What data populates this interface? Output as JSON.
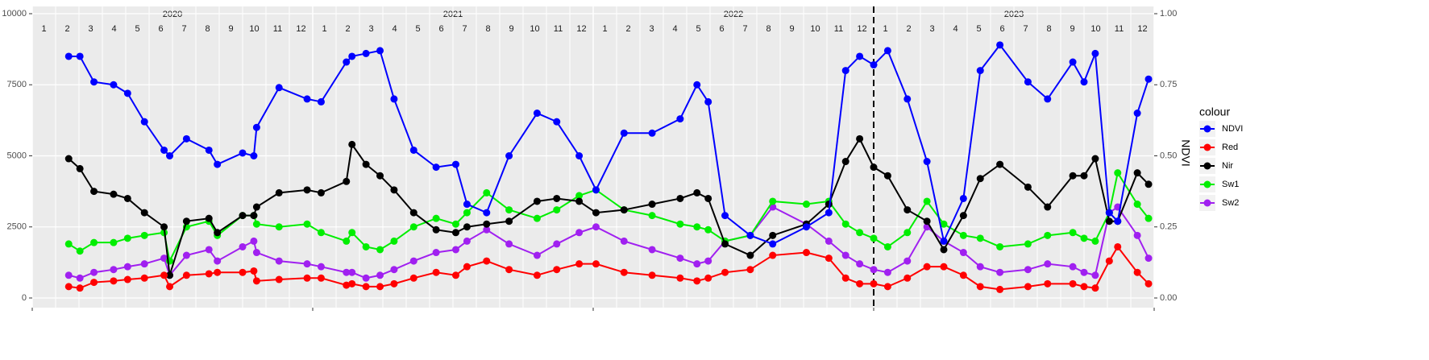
{
  "chart_data": {
    "type": "line",
    "y2_label": "NDVI",
    "legend_title": "colour",
    "legend": "right",
    "grid": true,
    "years": [
      "2020",
      "2021",
      "2022",
      "2023"
    ],
    "months": [
      "1",
      "2",
      "3",
      "4",
      "5",
      "6",
      "7",
      "8",
      "9",
      "10",
      "11",
      "12"
    ],
    "vline": 2023.0,
    "xlim": [
      2020.0,
      2024.0
    ],
    "xticks": [
      2020,
      2021,
      2022,
      2023,
      2024
    ],
    "ylim": [
      -340,
      10255
    ],
    "yticks": [
      0,
      2500,
      5000,
      7500,
      10000
    ],
    "y2lim": [
      -0.034,
      1.0255
    ],
    "y2ticks": [
      {
        "value": 0,
        "label": "0.00"
      },
      {
        "value": 0.25,
        "label": "0.25"
      },
      {
        "value": 0.5,
        "label": "0.50"
      },
      {
        "value": 0.75,
        "label": "0.75"
      },
      {
        "value": 1,
        "label": "1.00"
      }
    ],
    "x": [
      2020.13,
      2020.17,
      2020.22,
      2020.29,
      2020.34,
      2020.4,
      2020.47,
      2020.49,
      2020.55,
      2020.63,
      2020.66,
      2020.75,
      2020.79,
      2020.8,
      2020.88,
      2020.98,
      2021.03,
      2021.12,
      2021.14,
      2021.19,
      2021.24,
      2021.29,
      2021.36,
      2021.44,
      2021.51,
      2021.55,
      2021.62,
      2021.7,
      2021.8,
      2021.87,
      2021.95,
      2022.01,
      2022.11,
      2022.21,
      2022.31,
      2022.37,
      2022.41,
      2022.47,
      2022.56,
      2022.64,
      2022.76,
      2022.84,
      2022.9,
      2022.95,
      2023.0,
      2023.05,
      2023.12,
      2023.19,
      2023.25,
      2023.32,
      2023.38,
      2023.45,
      2023.55,
      2023.62,
      2023.71,
      2023.75,
      2023.79,
      2023.84,
      2023.87,
      2023.94,
      2023.98
    ],
    "series": [
      {
        "name": "NDVI",
        "color": "#0000ff",
        "axis": "y2",
        "values": [
          0.85,
          0.85,
          0.76,
          0.75,
          0.72,
          0.62,
          0.52,
          0.5,
          0.56,
          0.52,
          0.47,
          0.51,
          0.5,
          0.6,
          0.74,
          0.7,
          0.69,
          0.83,
          0.85,
          0.86,
          0.87,
          0.7,
          0.52,
          0.46,
          0.47,
          0.33,
          0.3,
          0.5,
          0.65,
          0.62,
          0.5,
          0.38,
          0.58,
          0.58,
          0.63,
          0.75,
          0.69,
          0.29,
          0.22,
          0.19,
          0.25,
          0.3,
          0.8,
          0.85,
          0.82,
          0.87,
          0.7,
          0.48,
          0.2,
          0.35,
          0.8,
          0.89,
          0.76,
          0.7,
          0.83,
          0.76,
          0.86,
          0.3,
          0.27,
          0.65,
          0.77
        ]
      },
      {
        "name": "Red",
        "color": "#ff0000",
        "values": [
          400,
          350,
          550,
          600,
          650,
          700,
          800,
          400,
          800,
          850,
          900,
          900,
          950,
          600,
          650,
          700,
          700,
          450,
          500,
          400,
          400,
          500,
          700,
          900,
          800,
          1100,
          1300,
          1000,
          800,
          1000,
          1200,
          1200,
          900,
          800,
          700,
          600,
          700,
          900,
          1000,
          1500,
          1600,
          1400,
          700,
          500,
          500,
          400,
          700,
          1100,
          1100,
          800,
          400,
          300,
          400,
          500,
          500,
          400,
          350,
          1300,
          1800,
          900,
          500
        ]
      },
      {
        "name": "Nir",
        "color": "#000000",
        "values": [
          4900,
          4550,
          3750,
          3650,
          3500,
          3000,
          2500,
          800,
          2700,
          2800,
          2300,
          2900,
          2900,
          3200,
          3700,
          3800,
          3700,
          4100,
          5400,
          4700,
          4300,
          3800,
          3000,
          2400,
          2300,
          2500,
          2600,
          2700,
          3400,
          3500,
          3400,
          3000,
          3100,
          3300,
          3500,
          3700,
          3500,
          1900,
          1500,
          2200,
          2600,
          3300,
          4800,
          5600,
          4600,
          4300,
          3100,
          2700,
          1700,
          2900,
          4200,
          4700,
          3900,
          3200,
          4300,
          4300,
          4900,
          2700,
          2700,
          4400,
          4000
        ]
      },
      {
        "name": "Sw1",
        "color": "#00ee00",
        "values": [
          1900,
          1650,
          1950,
          1950,
          2100,
          2200,
          2300,
          1300,
          2500,
          2700,
          2200,
          2900,
          2900,
          2600,
          2500,
          2600,
          2300,
          2000,
          2300,
          1800,
          1700,
          2000,
          2500,
          2800,
          2600,
          3000,
          3700,
          3100,
          2800,
          3100,
          3600,
          3800,
          3100,
          2900,
          2600,
          2500,
          2400,
          2000,
          2200,
          3400,
          3300,
          3400,
          2600,
          2300,
          2100,
          1800,
          2300,
          3400,
          2600,
          2200,
          2100,
          1800,
          1900,
          2200,
          2300,
          2100,
          2000,
          3000,
          4400,
          3300,
          2800
        ]
      },
      {
        "name": "Sw2",
        "color": "#a020f0",
        "values": [
          800,
          700,
          900,
          1000,
          1100,
          1200,
          1400,
          800,
          1500,
          1700,
          1300,
          1800,
          2000,
          1600,
          1300,
          1200,
          1100,
          900,
          900,
          700,
          800,
          1000,
          1300,
          1600,
          1700,
          2000,
          2400,
          1900,
          1500,
          1900,
          2300,
          2500,
          2000,
          1700,
          1400,
          1200,
          1300,
          2000,
          2200,
          3200,
          2600,
          2000,
          1500,
          1200,
          1000,
          900,
          1300,
          2500,
          2000,
          1600,
          1100,
          900,
          1000,
          1200,
          1100,
          900,
          800,
          3000,
          3200,
          2200,
          1400
        ]
      }
    ]
  }
}
